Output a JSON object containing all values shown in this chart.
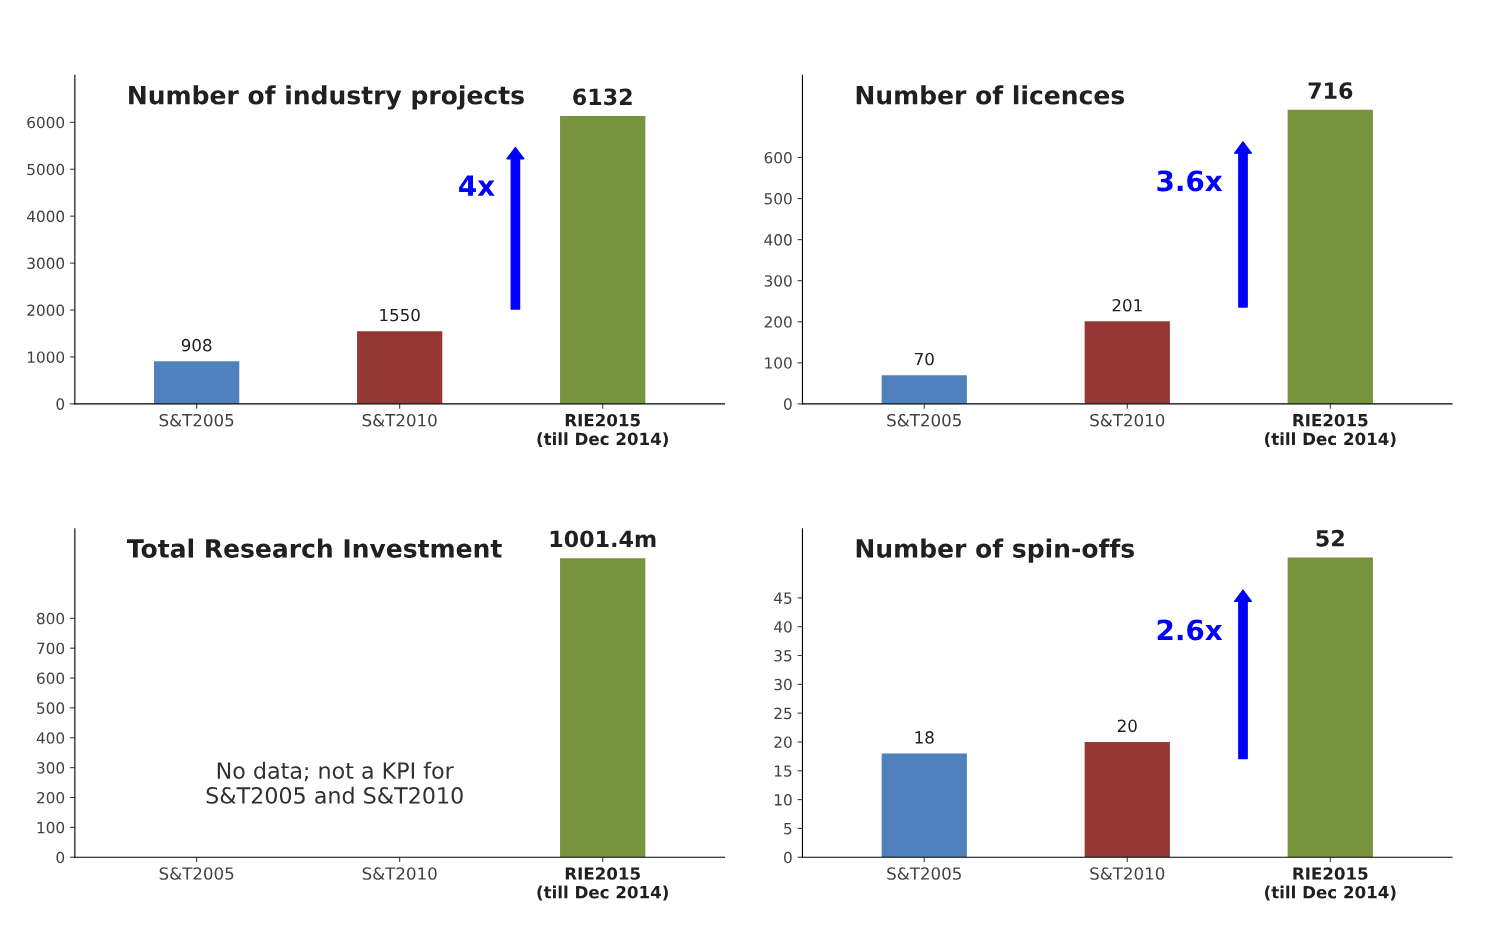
{
  "chart_data": [
    {
      "type": "bar",
      "title": "Number of industry projects",
      "categories": [
        "S&T2005",
        "S&T2010",
        "RIE2015 (till Dec 2014)"
      ],
      "values": [
        908,
        1550,
        6132
      ],
      "colors": [
        "#4f81bd",
        "#953735",
        "#77933c"
      ],
      "value_labels": [
        "908",
        "1550",
        "6132"
      ],
      "ylim": [
        0,
        7000
      ],
      "yticks": [
        0,
        1000,
        2000,
        3000,
        4000,
        5000,
        6000
      ],
      "annotations": [
        "4x"
      ],
      "grid": false
    },
    {
      "type": "bar",
      "title": "Number of licences",
      "categories": [
        "S&T2005",
        "S&T2010",
        "RIE2015 (till Dec 2014)"
      ],
      "values": [
        70,
        201,
        716
      ],
      "colors": [
        "#4f81bd",
        "#953735",
        "#77933c"
      ],
      "value_labels": [
        "70",
        "201",
        "716"
      ],
      "ylim": [
        0,
        800
      ],
      "yticks": [
        0,
        100,
        200,
        300,
        400,
        500,
        600
      ],
      "annotations": [
        "3.6x"
      ],
      "grid": false
    },
    {
      "type": "bar",
      "title": "Total Research Investment",
      "categories": [
        "S&T2005",
        "S&T2010",
        "RIE2015 (till Dec 2014)"
      ],
      "values": [
        null,
        null,
        1001.4
      ],
      "colors": [
        "#1f497d",
        "#632523",
        "#77933c"
      ],
      "value_labels": [
        null,
        null,
        "1001.4m"
      ],
      "ylim": [
        0,
        1100
      ],
      "yticks": [
        0,
        100,
        200,
        300,
        400,
        500,
        600,
        700,
        800
      ],
      "annotations": [
        "No data; not a KPI for\nS&T2005 and S&T2010"
      ],
      "grid": false
    },
    {
      "type": "bar",
      "title": "Number of spin-offs",
      "categories": [
        "S&T2005",
        "S&T2010",
        "RIE2015 (till Dec 2014)"
      ],
      "values": [
        18,
        20,
        52
      ],
      "colors": [
        "#4f81bd",
        "#953735",
        "#77933c"
      ],
      "value_labels": [
        "18",
        "20",
        "52"
      ],
      "ylim": [
        0,
        57
      ],
      "yticks": [
        0,
        5,
        10,
        15,
        20,
        25,
        30,
        35,
        40,
        45
      ],
      "annotations": [
        "2.6x"
      ],
      "grid": false
    }
  ]
}
